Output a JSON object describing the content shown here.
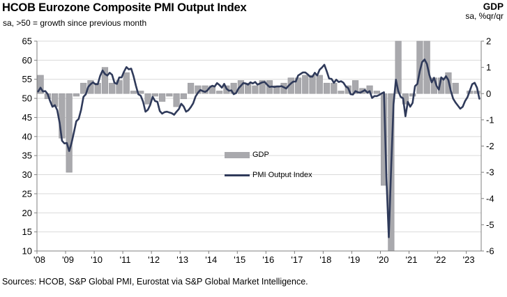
{
  "chart_data": {
    "type": "combo (quarterly bars on right axis + monthly line on left axis)",
    "title": "HCOB Eurozone Composite PMI Output Index",
    "subtitle": "sa, >50 = growth since previous month",
    "right_axis_header": "GDP",
    "right_axis_units": "sa, %qr/qr",
    "source": "Sources: HCOB, S&P Global PMI, Eurostat via S&P Global Market Intelligence.",
    "legend": {
      "bar_series": "GDP",
      "line_series": "PMI Output Index"
    },
    "left_axis": {
      "min": 10,
      "max": 65,
      "ticks": [
        65,
        60,
        55,
        50,
        45,
        40,
        35,
        30,
        25,
        20,
        15,
        10
      ],
      "gridlines_every": 5
    },
    "right_axis": {
      "min": -6,
      "max": 2,
      "ticks": [
        2,
        1,
        0,
        -1,
        -2,
        -3,
        -4,
        -5,
        -6
      ]
    },
    "x_axis": {
      "start_month": "2008-01",
      "end_month": "2023-06",
      "labels": [
        "'08",
        "'09",
        "'10",
        "'11",
        "'12",
        "'13",
        "'14",
        "'15",
        "'16",
        "'17",
        "'18",
        "'19",
        "'20",
        "'21",
        "'22",
        "'23"
      ]
    },
    "series": [
      {
        "name": "GDP",
        "type": "bar",
        "axis": "right",
        "freq": "quarterly",
        "start": "2008Q1",
        "values": [
          0.7,
          -0.2,
          -0.5,
          -1.7,
          -3.0,
          -0.1,
          0.4,
          0.5,
          0.4,
          1.0,
          0.4,
          0.5,
          0.8,
          0.1,
          0.1,
          -0.4,
          -0.1,
          -0.3,
          -0.1,
          -0.5,
          -0.2,
          0.4,
          0.3,
          0.3,
          0.3,
          0.1,
          0.3,
          0.4,
          0.5,
          0.4,
          0.3,
          0.5,
          0.5,
          0.3,
          0.4,
          0.6,
          0.6,
          0.7,
          0.7,
          0.7,
          0.4,
          0.4,
          0.1,
          0.3,
          0.5,
          0.2,
          0.3,
          0.1,
          -3.5,
          -11.5,
          12.6,
          -0.4,
          -0.1,
          2.2,
          2.3,
          0.6,
          0.6,
          0.8,
          0.4,
          0.0,
          0.1,
          0.1
        ]
      },
      {
        "name": "PMI Output Index",
        "type": "line",
        "axis": "left",
        "freq": "monthly",
        "start": "2008-01",
        "values": [
          51.8,
          52.8,
          51.8,
          51.9,
          51.1,
          49.3,
          47.8,
          48.2,
          46.9,
          43.6,
          38.9,
          38.2,
          38.3,
          36.2,
          38.3,
          41.1,
          44.0,
          44.6,
          47.0,
          50.4,
          51.1,
          53.0,
          53.7,
          54.2,
          53.7,
          53.7,
          55.9,
          57.3,
          56.4,
          56.0,
          56.7,
          56.2,
          54.1,
          53.8,
          55.5,
          55.5,
          57.0,
          58.2,
          57.6,
          57.8,
          55.8,
          53.3,
          51.1,
          50.7,
          49.1,
          46.5,
          47.0,
          48.3,
          50.4,
          49.3,
          49.1,
          46.7,
          46.0,
          46.4,
          46.5,
          46.3,
          46.1,
          45.7,
          46.5,
          47.2,
          48.6,
          47.9,
          46.5,
          46.9,
          47.7,
          48.7,
          50.5,
          51.5,
          52.2,
          51.9,
          51.7,
          52.1,
          52.9,
          53.3,
          53.1,
          54.0,
          53.5,
          52.8,
          53.8,
          52.5,
          52.0,
          52.1,
          51.1,
          51.4,
          52.6,
          53.3,
          54.0,
          53.9,
          53.6,
          54.2,
          53.9,
          54.3,
          53.6,
          53.9,
          54.2,
          54.3,
          53.6,
          53.0,
          53.1,
          53.0,
          53.1,
          53.1,
          53.2,
          52.9,
          52.6,
          53.3,
          53.9,
          54.4,
          54.4,
          56.0,
          56.4,
          56.8,
          56.8,
          56.3,
          55.7,
          55.7,
          56.7,
          56.0,
          57.5,
          58.1,
          58.8,
          57.1,
          55.2,
          55.1,
          54.1,
          54.9,
          54.3,
          54.5,
          54.1,
          53.1,
          52.7,
          51.1,
          51.0,
          51.9,
          51.6,
          51.5,
          51.8,
          52.2,
          51.5,
          51.9,
          50.1,
          50.6,
          50.6,
          50.9,
          51.3,
          51.6,
          29.7,
          13.6,
          31.9,
          48.5,
          54.9,
          51.9,
          50.4,
          50.0,
          45.3,
          49.1,
          47.8,
          48.8,
          53.2,
          53.8,
          57.1,
          59.5,
          60.2,
          59.0,
          56.2,
          54.2,
          55.4,
          53.3,
          52.3,
          55.5,
          54.9,
          55.8,
          54.8,
          52.0,
          49.9,
          48.9,
          48.1,
          47.3,
          47.8,
          49.3,
          50.3,
          52.0,
          53.7,
          54.1,
          52.8,
          49.9
        ]
      }
    ],
    "colors": {
      "bar": "#a9a9ad",
      "bar_border": "#9a9a9f",
      "line": "#2f3a5a",
      "grid": "#d9d9d9",
      "axis": "#7f7f7f",
      "text": "#000000",
      "background": "#ffffff"
    }
  }
}
